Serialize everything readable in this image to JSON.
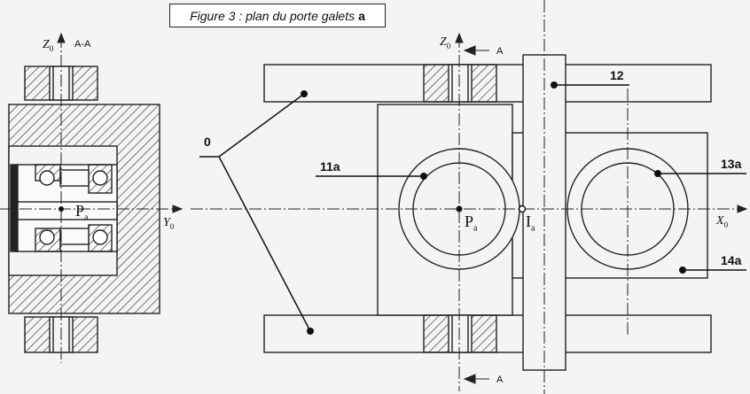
{
  "caption": {
    "text": "Figure 3 : plan du porte galets",
    "bold": "a"
  },
  "section_view": {
    "title": "A-A",
    "axis_z": "Z",
    "axis_z_sub": "0",
    "axis_y": "Y",
    "axis_y_sub": "0",
    "point": "P",
    "point_sub": "a"
  },
  "plan_view": {
    "axis_z": "Z",
    "axis_z_sub": "0",
    "axis_x": "X",
    "axis_x_sub": "0",
    "section_mark_top": "A",
    "section_mark_bottom": "A",
    "point_p": "P",
    "point_p_sub": "a",
    "point_i": "I",
    "point_i_sub": "a"
  },
  "refs": {
    "r0": "0",
    "r11a": "11a",
    "r12": "12",
    "r13a": "13a",
    "r14a": "14a"
  }
}
